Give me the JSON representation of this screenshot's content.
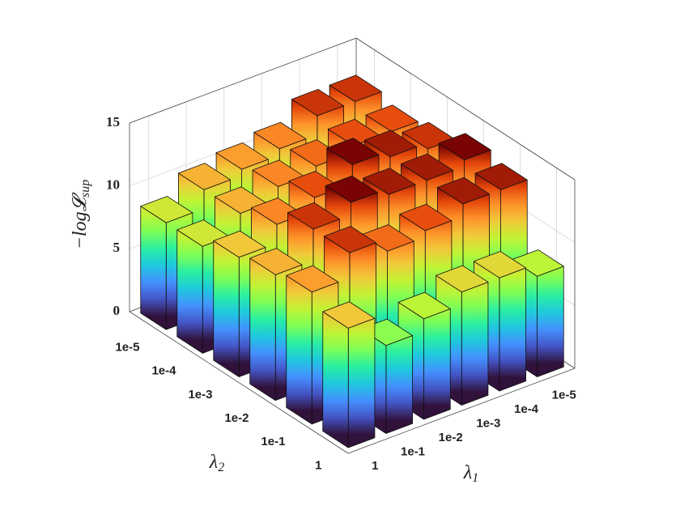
{
  "chart_data": {
    "type": "bar3d",
    "x_label": "λ",
    "x_label_sub": "1",
    "y_label": "λ",
    "y_label_sub": "2",
    "z_label": "−log𝓛",
    "z_label_sub": "sup",
    "x_categories": [
      "1",
      "1e-1",
      "1e-2",
      "1e-3",
      "1e-4",
      "1e-5"
    ],
    "y_categories": [
      "1e-5",
      "1e-4",
      "1e-3",
      "1e-2",
      "1e-1",
      "1"
    ],
    "values": [
      [
        8.5,
        10,
        10.5,
        11,
        12.5,
        12.5
      ],
      [
        8.5,
        10,
        11,
        11.5,
        12,
        12
      ],
      [
        9.5,
        11,
        12,
        13.5,
        13,
        12.5
      ],
      [
        10,
        12.5,
        13.5,
        13,
        13,
        13.5
      ],
      [
        10.5,
        12.5,
        11.5,
        12,
        13,
        13
      ],
      [
        9.5,
        7,
        8,
        9,
        9,
        8
      ]
    ],
    "zlim": [
      0,
      15
    ],
    "zticks": [
      0,
      5,
      10,
      15
    ],
    "grid": true,
    "colormap": "turbo"
  }
}
